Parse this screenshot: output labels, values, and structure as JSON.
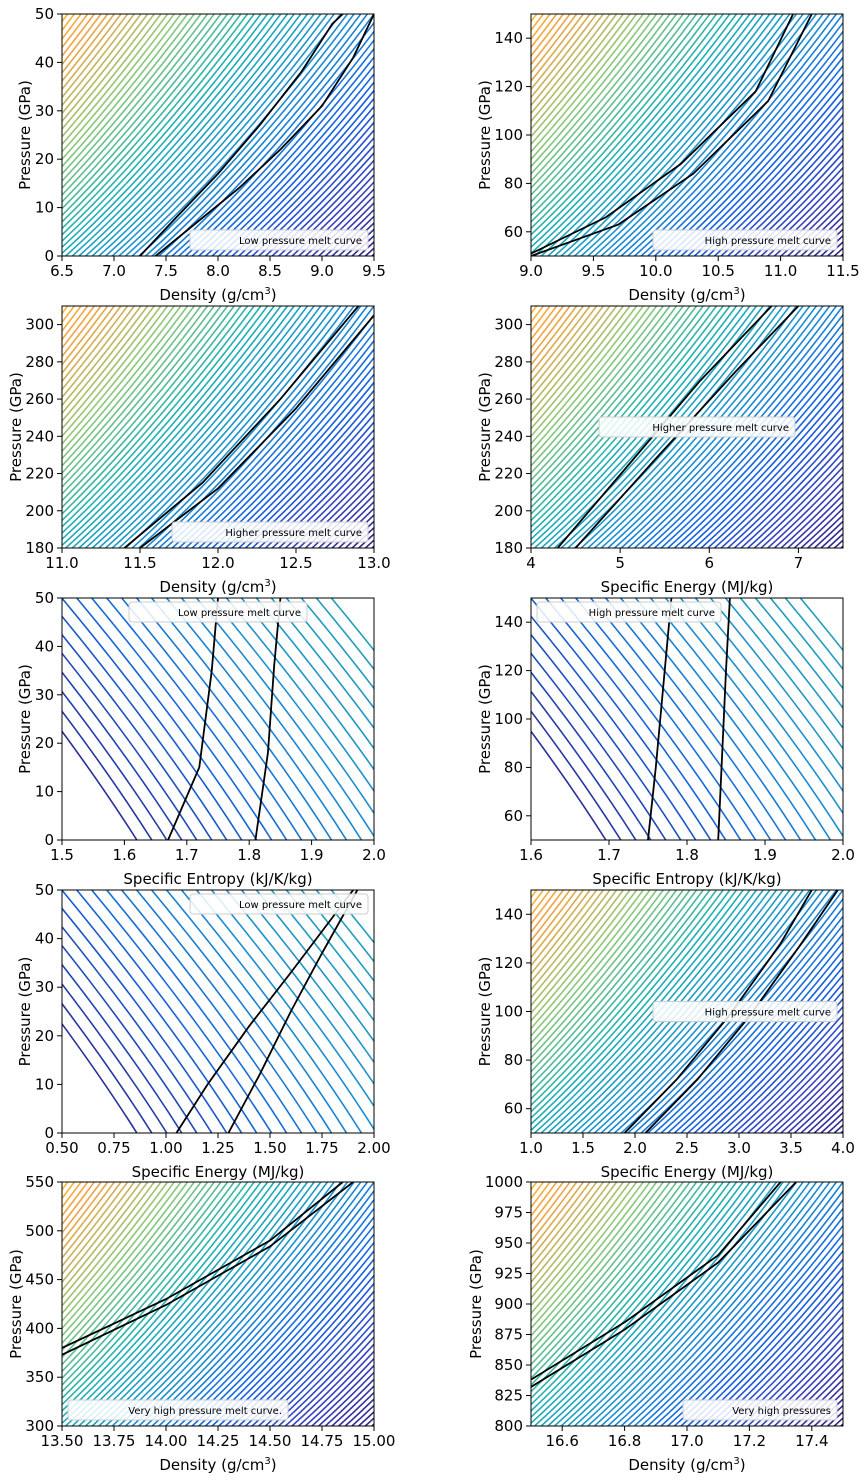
{
  "chart_data": [
    {
      "type": "line",
      "title": "",
      "xlabel": "Density (g/cm",
      "xlabel_sup": "3",
      "xlabel_tail": ")",
      "ylabel": "Pressure (GPa)",
      "xlim": [
        6.5,
        9.5
      ],
      "ylim": [
        0,
        50
      ],
      "xticks": [
        6.5,
        7.0,
        7.5,
        8.0,
        8.5,
        9.0,
        9.5
      ],
      "xtick_labels": [
        "6.5",
        "7.0",
        "7.5",
        "8.0",
        "8.5",
        "9.0",
        "9.5"
      ],
      "yticks": [
        0,
        10,
        20,
        30,
        40,
        50
      ],
      "ytick_labels": [
        "0",
        "10",
        "20",
        "30",
        "40",
        "50"
      ],
      "legend": {
        "label": "Low pressure melt curve",
        "loc": "lower-right"
      },
      "background": "isotherm-fan",
      "melt_curves": [
        {
          "x": [
            7.25,
            7.6,
            8.0,
            8.4,
            8.8,
            9.1,
            9.2
          ],
          "y": [
            0,
            8,
            17,
            27,
            38,
            48,
            50
          ]
        },
        {
          "x": [
            7.4,
            7.8,
            8.2,
            8.6,
            9.0,
            9.3,
            9.5
          ],
          "y": [
            0,
            7,
            14,
            22,
            31,
            41,
            50
          ]
        }
      ]
    },
    {
      "type": "line",
      "title": "",
      "xlabel": "Density (g/cm",
      "xlabel_sup": "3",
      "xlabel_tail": ")",
      "ylabel": "Pressure (GPa)",
      "xlim": [
        9.0,
        11.5
      ],
      "ylim": [
        50,
        150
      ],
      "xticks": [
        9.0,
        9.5,
        10.0,
        10.5,
        11.0,
        11.5
      ],
      "xtick_labels": [
        "9.0",
        "9.5",
        "10.0",
        "10.5",
        "11.0",
        "11.5"
      ],
      "yticks": [
        60,
        80,
        100,
        120,
        140
      ],
      "ytick_labels": [
        "60",
        "80",
        "100",
        "120",
        "140"
      ],
      "legend": {
        "label": "High pressure melt curve",
        "loc": "lower-right"
      },
      "background": "isotherm-fan",
      "melt_curves": [
        {
          "x": [
            9.0,
            9.6,
            10.2,
            10.8,
            11.1
          ],
          "y": [
            51,
            66,
            88,
            118,
            150
          ]
        },
        {
          "x": [
            9.0,
            9.7,
            10.3,
            10.9,
            11.25
          ],
          "y": [
            50,
            63,
            84,
            114,
            150
          ]
        }
      ]
    },
    {
      "type": "line",
      "title": "",
      "xlabel": "Density (g/cm",
      "xlabel_sup": "3",
      "xlabel_tail": ")",
      "ylabel": "Pressure (GPa)",
      "xlim": [
        11.0,
        13.0
      ],
      "ylim": [
        180,
        310
      ],
      "xticks": [
        11.0,
        11.5,
        12.0,
        12.5,
        13.0
      ],
      "xtick_labels": [
        "11.0",
        "11.5",
        "12.0",
        "12.5",
        "13.0"
      ],
      "yticks": [
        180,
        200,
        220,
        240,
        260,
        280,
        300
      ],
      "ytick_labels": [
        "180",
        "200",
        "220",
        "240",
        "260",
        "280",
        "300"
      ],
      "legend": {
        "label": "Higher pressure melt curve",
        "loc": "lower-right"
      },
      "background": "isotherm-fan",
      "melt_curves": [
        {
          "x": [
            11.4,
            11.9,
            12.4,
            12.9
          ],
          "y": [
            180,
            215,
            260,
            310
          ]
        },
        {
          "x": [
            11.5,
            12.0,
            12.5,
            13.0
          ],
          "y": [
            180,
            212,
            255,
            305
          ]
        }
      ]
    },
    {
      "type": "line",
      "title": "",
      "xlabel": "Specific Energy (MJ/kg)",
      "ylabel": "Pressure (GPa)",
      "xlim": [
        4.0,
        7.5
      ],
      "ylim": [
        180,
        310
      ],
      "xticks": [
        4,
        5,
        6,
        7
      ],
      "xtick_labels": [
        "4",
        "5",
        "6",
        "7"
      ],
      "yticks": [
        180,
        200,
        220,
        240,
        260,
        280,
        300
      ],
      "ytick_labels": [
        "180",
        "200",
        "220",
        "240",
        "260",
        "280",
        "300"
      ],
      "legend": {
        "label": "Higher pressure melt curve",
        "loc": "center"
      },
      "background": "isotherm-fan",
      "melt_curves": [
        {
          "x": [
            4.3,
            5.1,
            5.9,
            6.7
          ],
          "y": [
            180,
            225,
            270,
            310
          ]
        },
        {
          "x": [
            4.5,
            5.4,
            6.3,
            7.0
          ],
          "y": [
            180,
            228,
            275,
            310
          ]
        }
      ]
    },
    {
      "type": "line",
      "title": "",
      "xlabel": "Specific Entropy (kJ/K/kg)",
      "ylabel": "Pressure (GPa)",
      "xlim": [
        1.5,
        2.0
      ],
      "ylim": [
        0,
        50
      ],
      "xticks": [
        1.5,
        1.6,
        1.7,
        1.8,
        1.9,
        2.0
      ],
      "xtick_labels": [
        "1.5",
        "1.6",
        "1.7",
        "1.8",
        "1.9",
        "2.0"
      ],
      "yticks": [
        0,
        10,
        20,
        30,
        40,
        50
      ],
      "ytick_labels": [
        "0",
        "10",
        "20",
        "30",
        "40",
        "50"
      ],
      "legend": {
        "label": "Low pressure melt curve",
        "loc": "upper-center"
      },
      "background": "isentrope-lines",
      "melt_curves": [
        {
          "x": [
            1.67,
            1.72,
            1.74,
            1.75
          ],
          "y": [
            0,
            15,
            35,
            50
          ]
        },
        {
          "x": [
            1.81,
            1.83,
            1.84,
            1.85
          ],
          "y": [
            0,
            18,
            36,
            50
          ]
        }
      ]
    },
    {
      "type": "line",
      "title": "",
      "xlabel": "Specific Entropy (kJ/K/kg)",
      "ylabel": "Pressure (GPa)",
      "xlim": [
        1.6,
        2.0
      ],
      "ylim": [
        50,
        150
      ],
      "xticks": [
        1.6,
        1.7,
        1.8,
        1.9,
        2.0
      ],
      "xtick_labels": [
        "1.6",
        "1.7",
        "1.8",
        "1.9",
        "2.0"
      ],
      "yticks": [
        60,
        80,
        100,
        120,
        140
      ],
      "ytick_labels": [
        "60",
        "80",
        "100",
        "120",
        "140"
      ],
      "legend": {
        "label": "High pressure melt curve",
        "loc": "upper-left"
      },
      "background": "isentrope-lines",
      "melt_curves": [
        {
          "x": [
            1.75,
            1.76,
            1.77,
            1.78
          ],
          "y": [
            50,
            80,
            115,
            150
          ]
        },
        {
          "x": [
            1.84,
            1.845,
            1.85,
            1.855
          ],
          "y": [
            50,
            85,
            120,
            150
          ]
        }
      ]
    },
    {
      "type": "line",
      "title": "",
      "xlabel": "Specific Energy (MJ/kg)",
      "ylabel": "Pressure (GPa)",
      "xlim": [
        0.5,
        2.0
      ],
      "ylim": [
        0,
        50
      ],
      "xticks": [
        0.5,
        0.75,
        1.0,
        1.25,
        1.5,
        1.75,
        2.0
      ],
      "xtick_labels": [
        "0.50",
        "0.75",
        "1.00",
        "1.25",
        "1.50",
        "1.75",
        "2.00"
      ],
      "yticks": [
        0,
        10,
        20,
        30,
        40,
        50
      ],
      "ytick_labels": [
        "0",
        "10",
        "20",
        "30",
        "40",
        "50"
      ],
      "legend": {
        "label": "Low pressure melt curve",
        "loc": "upper-right"
      },
      "background": "isentrope-lines",
      "melt_curves": [
        {
          "x": [
            1.05,
            1.2,
            1.4,
            1.6,
            1.9
          ],
          "y": [
            0,
            10,
            22,
            33,
            50
          ]
        },
        {
          "x": [
            1.3,
            1.45,
            1.6,
            1.75,
            1.92
          ],
          "y": [
            0,
            12,
            25,
            37,
            50
          ]
        }
      ]
    },
    {
      "type": "line",
      "title": "",
      "xlabel": "Specific Energy (MJ/kg)",
      "ylabel": "Pressure (GPa)",
      "xlim": [
        1.0,
        4.0
      ],
      "ylim": [
        50,
        150
      ],
      "xticks": [
        1.0,
        1.5,
        2.0,
        2.5,
        3.0,
        3.5,
        4.0
      ],
      "xtick_labels": [
        "1.0",
        "1.5",
        "2.0",
        "2.5",
        "3.0",
        "3.5",
        "4.0"
      ],
      "yticks": [
        60,
        80,
        100,
        120,
        140
      ],
      "ytick_labels": [
        "60",
        "80",
        "100",
        "120",
        "140"
      ],
      "legend": {
        "label": "High pressure melt curve",
        "loc": "center-right"
      },
      "background": "isotherm-fan",
      "melt_curves": [
        {
          "x": [
            1.9,
            2.4,
            2.9,
            3.4,
            3.7
          ],
          "y": [
            50,
            72,
            98,
            128,
            150
          ]
        },
        {
          "x": [
            2.1,
            2.6,
            3.1,
            3.6,
            3.95
          ],
          "y": [
            50,
            72,
            98,
            128,
            150
          ]
        }
      ]
    },
    {
      "type": "line",
      "title": "",
      "xlabel": "Density (g/cm",
      "xlabel_sup": "3",
      "xlabel_tail": ")",
      "ylabel": "Pressure (GPa)",
      "xlim": [
        13.5,
        15.0
      ],
      "ylim": [
        300,
        550
      ],
      "xticks": [
        13.5,
        13.75,
        14.0,
        14.25,
        14.5,
        14.75,
        15.0
      ],
      "xtick_labels": [
        "13.50",
        "13.75",
        "14.00",
        "14.25",
        "14.50",
        "14.75",
        "15.00"
      ],
      "yticks": [
        300,
        350,
        400,
        450,
        500,
        550
      ],
      "ytick_labels": [
        "300",
        "350",
        "400",
        "450",
        "500",
        "550"
      ],
      "legend": {
        "label": "Very high pressure melt curve.",
        "loc": "lower-left"
      },
      "background": "isotherm-fan",
      "melt_curves": [
        {
          "x": [
            13.5,
            14.0,
            14.5,
            14.85
          ],
          "y": [
            380,
            430,
            490,
            550
          ]
        },
        {
          "x": [
            13.5,
            14.0,
            14.5,
            14.9
          ],
          "y": [
            373,
            424,
            484,
            550
          ]
        }
      ]
    },
    {
      "type": "line",
      "title": "",
      "xlabel": "Density (g/cm",
      "xlabel_sup": "3",
      "xlabel_tail": ")",
      "ylabel": "Pressure (GPa)",
      "xlim": [
        16.5,
        17.5
      ],
      "ylim": [
        800,
        1000
      ],
      "xticks": [
        16.6,
        16.8,
        17.0,
        17.2,
        17.4
      ],
      "xtick_labels": [
        "16.6",
        "16.8",
        "17.0",
        "17.2",
        "17.4"
      ],
      "yticks": [
        800,
        825,
        850,
        875,
        900,
        925,
        950,
        975,
        1000
      ],
      "ytick_labels": [
        "800",
        "825",
        "850",
        "875",
        "900",
        "925",
        "950",
        "975",
        "1000"
      ],
      "legend": {
        "label": "Very high pressures",
        "loc": "lower-right"
      },
      "background": "isotherm-fan",
      "melt_curves": [
        {
          "x": [
            16.5,
            16.8,
            17.1,
            17.3
          ],
          "y": [
            838,
            885,
            940,
            1000
          ]
        },
        {
          "x": [
            16.5,
            16.8,
            17.1,
            17.35
          ],
          "y": [
            832,
            879,
            934,
            1000
          ]
        }
      ]
    }
  ]
}
